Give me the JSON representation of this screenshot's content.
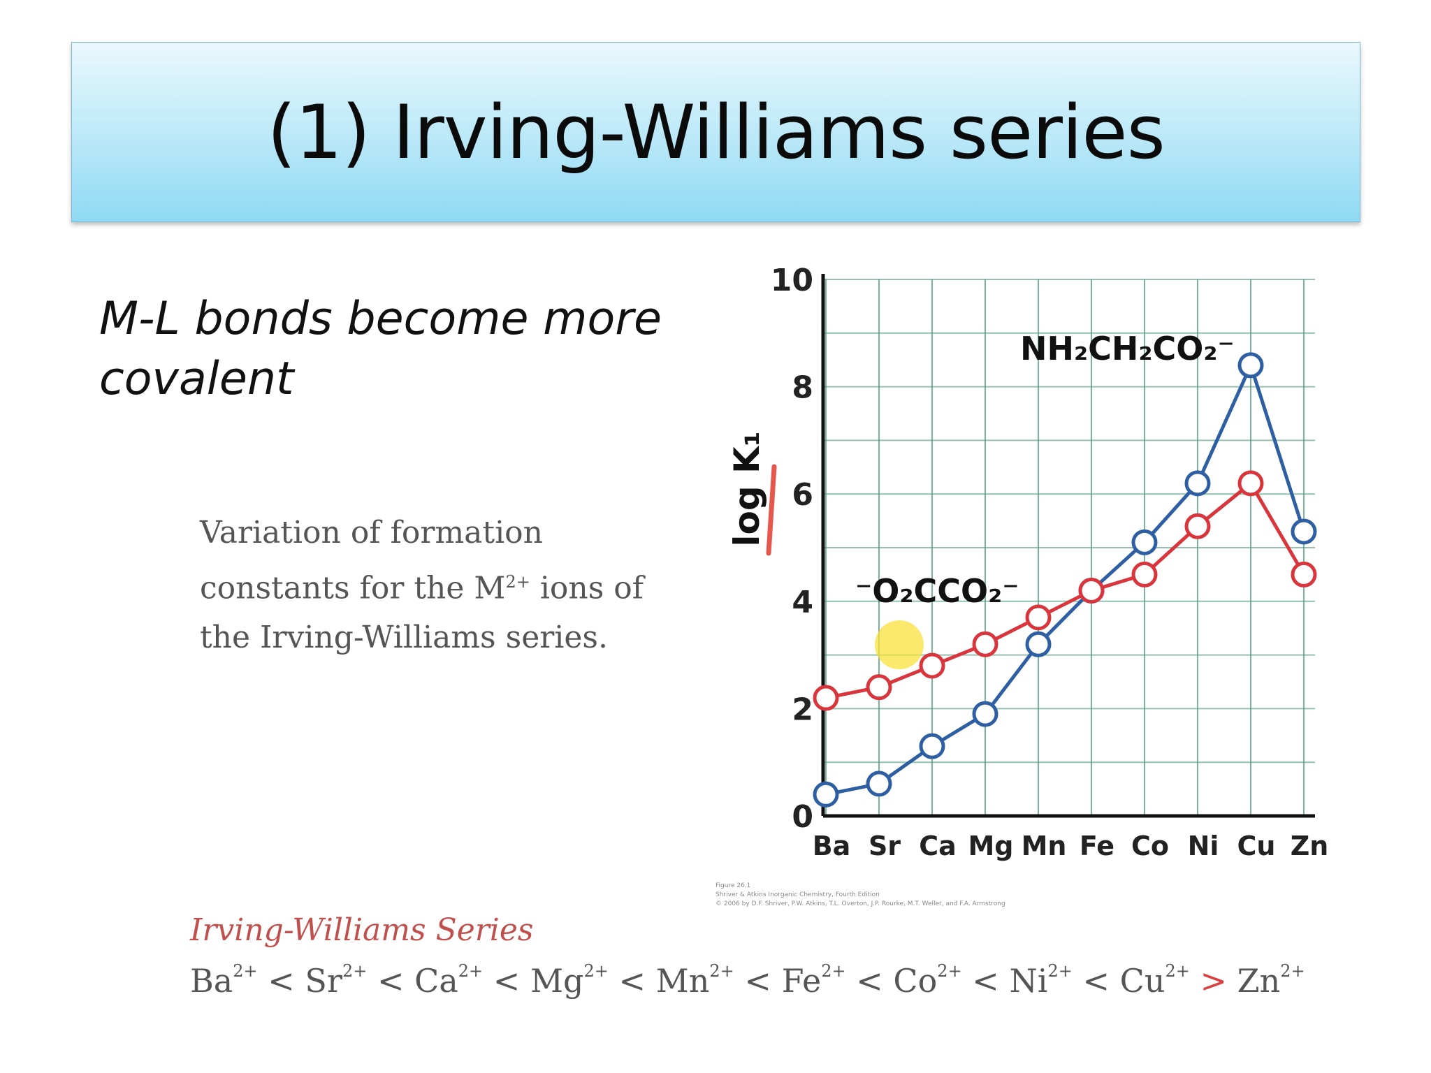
{
  "slide": {
    "title": "(1) Irving-Williams series",
    "bullet": "M-L bonds become more covalent",
    "caption": "Variation of formation constants for the M2+ ions of the Irving-Williams series.",
    "series_heading": "Irving-Williams Series",
    "series_ions": [
      "Ba",
      "Sr",
      "Ca",
      "Mg",
      "Mn",
      "Fe",
      "Co",
      "Ni",
      "Cu",
      "Zn"
    ],
    "charge": "2+",
    "relations": [
      "<",
      "<",
      "<",
      "<",
      "<",
      "<",
      "<",
      "<",
      ">"
    ],
    "credit_lines": [
      "Figure 26.1",
      "Shriver & Atkins Inorganic Chemistry, Fourth Edition",
      "© 2006 by D.F. Shriver, P.W. Atkins, T.L. Overton, J.P. Rourke, M.T. Weller, and F.A. Armstrong"
    ]
  },
  "colors": {
    "series_blue": "#2e5fa3",
    "series_red": "#d9353c",
    "grid": "#4f9a7a",
    "highlight_red": "#c0504d"
  },
  "chart_data": {
    "type": "line",
    "categories": [
      "Ba",
      "Sr",
      "Ca",
      "Mg",
      "Mn",
      "Fe",
      "Co",
      "Ni",
      "Cu",
      "Zn"
    ],
    "ylabel": "log K₁",
    "ylim": [
      0,
      10
    ],
    "yticks": [
      "0",
      "2",
      "4",
      "6",
      "8",
      "10"
    ],
    "grid": true,
    "series": [
      {
        "name": "NH₂CH₂CO₂⁻",
        "color": "#2e5fa3",
        "values": [
          0.4,
          0.6,
          1.3,
          1.9,
          3.2,
          4.2,
          5.1,
          6.2,
          8.4,
          5.3
        ]
      },
      {
        "name": "⁻O₂CCO₂⁻",
        "color": "#d9353c",
        "values": [
          2.2,
          2.4,
          2.8,
          3.2,
          3.7,
          4.2,
          4.5,
          5.4,
          6.2,
          4.5
        ]
      }
    ]
  }
}
